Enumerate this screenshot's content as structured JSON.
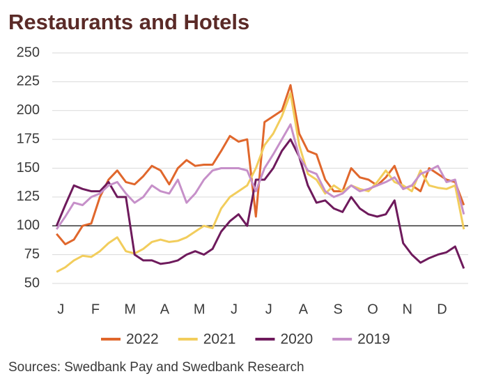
{
  "chart_data": {
    "type": "line",
    "title": "Restaurants and Hotels",
    "source": "Sources: Swedbank Pay and Swedbank Research",
    "categories": [
      "J",
      null,
      null,
      null,
      "F",
      null,
      null,
      null,
      "M",
      null,
      null,
      null,
      "A",
      null,
      null,
      null,
      "M",
      null,
      null,
      null,
      "J",
      null,
      null,
      null,
      "J",
      null,
      null,
      null,
      "A",
      null,
      null,
      null,
      "S",
      null,
      null,
      null,
      "O",
      null,
      null,
      null,
      "N",
      null,
      null,
      null,
      "D",
      null,
      null,
      null
    ],
    "series": [
      {
        "name": "2022",
        "color": "#e0672c",
        "values": [
          93,
          84,
          88,
          100,
          102,
          125,
          140,
          148,
          138,
          136,
          143,
          152,
          148,
          136,
          150,
          157,
          152,
          153,
          153,
          165,
          178,
          173,
          175,
          108,
          190,
          195,
          200,
          222,
          180,
          165,
          162,
          140,
          130,
          130,
          150,
          142,
          140,
          135,
          142,
          152,
          132,
          135,
          130,
          150,
          145,
          140,
          138,
          118
        ]
      },
      {
        "name": "2021",
        "color": "#f2cd5c",
        "values": [
          60,
          64,
          70,
          74,
          73,
          78,
          85,
          90,
          78,
          76,
          80,
          86,
          88,
          86,
          87,
          90,
          95,
          100,
          98,
          115,
          125,
          130,
          135,
          150,
          170,
          180,
          195,
          215,
          170,
          145,
          140,
          128,
          135,
          130,
          135,
          132,
          130,
          138,
          148,
          138,
          135,
          130,
          148,
          135,
          133,
          132,
          135,
          97
        ]
      },
      {
        "name": "2020",
        "color": "#6e1a5c",
        "values": [
          100,
          118,
          135,
          132,
          130,
          130,
          138,
          125,
          125,
          75,
          70,
          70,
          67,
          68,
          70,
          75,
          78,
          75,
          80,
          95,
          104,
          110,
          100,
          140,
          140,
          150,
          165,
          175,
          160,
          135,
          120,
          122,
          115,
          112,
          125,
          115,
          110,
          108,
          110,
          122,
          85,
          75,
          68,
          72,
          75,
          77,
          82,
          63
        ]
      },
      {
        "name": "2019",
        "color": "#c690c9",
        "values": [
          97,
          108,
          120,
          118,
          125,
          128,
          135,
          138,
          128,
          120,
          125,
          135,
          130,
          128,
          140,
          120,
          128,
          140,
          148,
          150,
          150,
          150,
          148,
          130,
          150,
          162,
          175,
          188,
          160,
          148,
          145,
          130,
          125,
          128,
          135,
          130,
          132,
          135,
          138,
          142,
          132,
          135,
          145,
          148,
          152,
          138,
          140,
          110
        ]
      }
    ],
    "ylim": [
      50,
      250
    ],
    "yticks": [
      50,
      75,
      100,
      125,
      150,
      175,
      200,
      225,
      250
    ],
    "reference_line": 100,
    "grid": true
  }
}
